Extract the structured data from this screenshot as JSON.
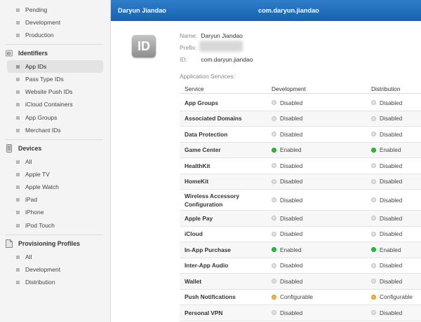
{
  "sidebar": {
    "top_items": [
      {
        "label": "Pending"
      },
      {
        "label": "Development"
      },
      {
        "label": "Production"
      }
    ],
    "sections": [
      {
        "title": "Identifiers",
        "icon": "id-icon",
        "items": [
          {
            "label": "App IDs",
            "selected": true
          },
          {
            "label": "Pass Type IDs"
          },
          {
            "label": "Website Push IDs"
          },
          {
            "label": "iCloud Containers"
          },
          {
            "label": "App Groups"
          },
          {
            "label": "Merchant IDs"
          }
        ]
      },
      {
        "title": "Devices",
        "icon": "device-icon",
        "items": [
          {
            "label": "All"
          },
          {
            "label": "Apple TV"
          },
          {
            "label": "Apple Watch"
          },
          {
            "label": "iPad"
          },
          {
            "label": "iPhone"
          },
          {
            "label": "iPod Touch"
          }
        ]
      },
      {
        "title": "Provisioning Profiles",
        "icon": "document-icon",
        "items": [
          {
            "label": "All"
          },
          {
            "label": "Development"
          },
          {
            "label": "Distribution"
          }
        ]
      }
    ]
  },
  "header": {
    "user_name": "Daryun Jiandao",
    "title": "com.daryun.jiandao",
    "background_color": "#1f6dbd"
  },
  "detail": {
    "icon_label": "ID",
    "name_label": "Name:",
    "name_value": "Daryun Jiandao",
    "prefix_label": "Prefix:",
    "id_label": "ID:",
    "id_value": "com.daryun.jiandao",
    "services_title": "Application Services:"
  },
  "services_table": {
    "headers": {
      "service": "Service",
      "development": "Development",
      "distribution": "Distribution"
    },
    "rows": [
      {
        "service": "App Groups",
        "development": "Disabled",
        "distribution": "Disabled"
      },
      {
        "service": "Associated Domains",
        "development": "Disabled",
        "distribution": "Disabled"
      },
      {
        "service": "Data Protection",
        "development": "Disabled",
        "distribution": "Disabled"
      },
      {
        "service": "Game Center",
        "development": "Enabled",
        "distribution": "Enabled"
      },
      {
        "service": "HealthKit",
        "development": "Disabled",
        "distribution": "Disabled"
      },
      {
        "service": "HomeKit",
        "development": "Disabled",
        "distribution": "Disabled"
      },
      {
        "service": "Wireless Accessory Configuration",
        "development": "Disabled",
        "distribution": "Disabled"
      },
      {
        "service": "Apple Pay",
        "development": "Disabled",
        "distribution": "Disabled"
      },
      {
        "service": "iCloud",
        "development": "Disabled",
        "distribution": "Disabled"
      },
      {
        "service": "In-App Purchase",
        "development": "Enabled",
        "distribution": "Enabled"
      },
      {
        "service": "Inter-App Audio",
        "development": "Disabled",
        "distribution": "Disabled"
      },
      {
        "service": "Wallet",
        "development": "Disabled",
        "distribution": "Disabled"
      },
      {
        "service": "Push Notifications",
        "development": "Configurable",
        "distribution": "Configurable"
      },
      {
        "service": "Personal VPN",
        "development": "Disabled",
        "distribution": "Disabled"
      }
    ]
  },
  "status_colors": {
    "Enabled": "#25c03a",
    "Disabled": "#e0e0e0",
    "Configurable": "#f0b73a"
  }
}
